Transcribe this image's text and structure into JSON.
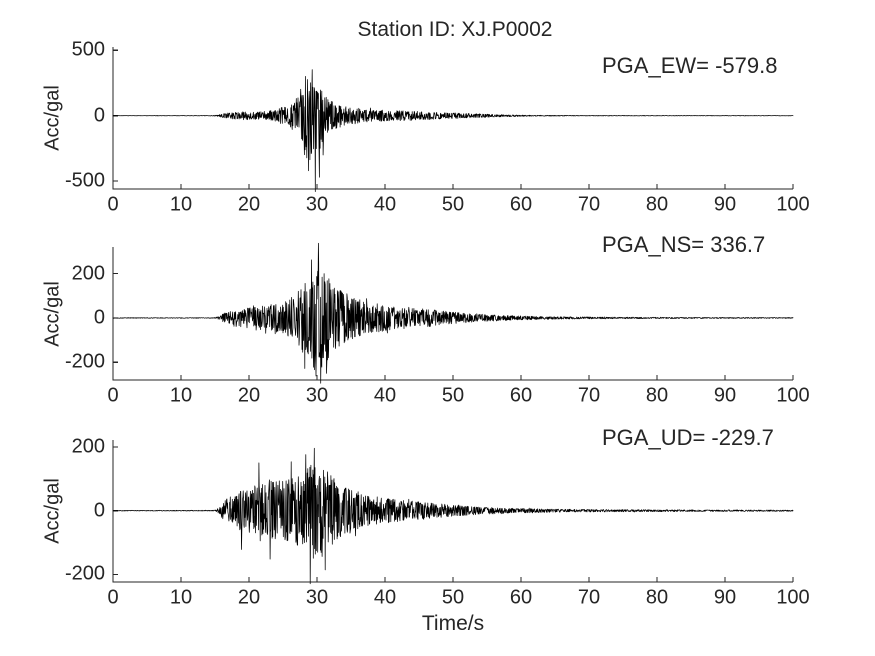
{
  "title": "Station ID: XJ.P0002",
  "background": "#ffffff",
  "axis_color": "#262626",
  "trace_color": "#000000",
  "chart_data": [
    {
      "type": "line",
      "series": "EW acceleration waveform",
      "annotation": "PGA_EW= -579.8",
      "pga_gal": -579.8,
      "ylabel": "Acc/gal",
      "xlabel": "",
      "xlim": [
        0,
        100
      ],
      "xticks": [
        0,
        10,
        20,
        30,
        40,
        50,
        60,
        70,
        80,
        90,
        100
      ],
      "yticks": [
        -500,
        0,
        500
      ],
      "ylim": [
        -560,
        525
      ],
      "grid": false,
      "legend": false,
      "envelope_t_amp": [
        [
          0,
          1.2
        ],
        [
          14,
          1.4
        ],
        [
          15.3,
          4
        ],
        [
          16,
          14
        ],
        [
          17,
          22
        ],
        [
          18,
          26
        ],
        [
          19,
          30
        ],
        [
          20,
          32
        ],
        [
          21,
          30
        ],
        [
          22,
          34
        ],
        [
          23,
          38
        ],
        [
          24,
          46
        ],
        [
          25,
          70
        ],
        [
          25.7,
          58
        ],
        [
          26.3,
          105
        ],
        [
          27,
          140
        ],
        [
          27.5,
          195
        ],
        [
          28,
          290
        ],
        [
          28.5,
          335
        ],
        [
          29,
          345
        ],
        [
          29.6,
          330
        ],
        [
          30,
          335
        ],
        [
          30.5,
          245
        ],
        [
          31,
          180
        ],
        [
          31.6,
          150
        ],
        [
          32,
          112
        ],
        [
          33,
          95
        ],
        [
          34,
          76
        ],
        [
          35,
          65
        ],
        [
          36,
          60
        ],
        [
          37,
          55
        ],
        [
          38,
          48
        ],
        [
          39,
          45
        ],
        [
          40,
          42
        ],
        [
          42,
          38
        ],
        [
          44,
          36
        ],
        [
          46,
          30
        ],
        [
          48,
          28
        ],
        [
          50,
          22
        ],
        [
          52,
          18
        ],
        [
          54,
          14
        ],
        [
          56,
          10
        ],
        [
          58,
          7
        ],
        [
          60,
          5
        ],
        [
          63,
          3.5
        ],
        [
          66,
          2.5
        ],
        [
          70,
          2
        ],
        [
          80,
          1.6
        ],
        [
          90,
          1.4
        ],
        [
          100,
          1.3
        ]
      ],
      "peak_spikes": [
        {
          "t": 29.75,
          "v": -579.8
        },
        {
          "t": 29.3,
          "v": 352
        },
        {
          "t": 30.35,
          "v": -470
        },
        {
          "t": 28.75,
          "v": -420
        },
        {
          "t": 28.3,
          "v": 300
        },
        {
          "t": 30.9,
          "v": -300
        }
      ]
    },
    {
      "type": "line",
      "series": "NS acceleration waveform",
      "annotation": "PGA_NS= 336.7",
      "pga_gal": 336.7,
      "ylabel": "Acc/gal",
      "xlabel": "",
      "xlim": [
        0,
        100
      ],
      "xticks": [
        0,
        10,
        20,
        30,
        40,
        50,
        60,
        70,
        80,
        90,
        100
      ],
      "yticks": [
        -200,
        0,
        200
      ],
      "ylim": [
        -280,
        320
      ],
      "grid": false,
      "legend": false,
      "envelope_t_amp": [
        [
          0,
          1.2
        ],
        [
          14.8,
          1.4
        ],
        [
          15.6,
          7
        ],
        [
          16,
          16
        ],
        [
          17,
          30
        ],
        [
          18,
          40
        ],
        [
          19,
          42
        ],
        [
          20,
          48
        ],
        [
          21,
          55
        ],
        [
          22,
          64
        ],
        [
          23,
          58
        ],
        [
          24,
          68
        ],
        [
          25,
          74
        ],
        [
          26,
          85
        ],
        [
          26.5,
          115
        ],
        [
          27,
          108
        ],
        [
          27.5,
          138
        ],
        [
          28,
          168
        ],
        [
          28.5,
          152
        ],
        [
          29,
          198
        ],
        [
          29.5,
          228
        ],
        [
          30,
          258
        ],
        [
          30.5,
          238
        ],
        [
          31,
          200
        ],
        [
          31.5,
          208
        ],
        [
          32,
          160
        ],
        [
          33,
          140
        ],
        [
          34,
          118
        ],
        [
          35,
          100
        ],
        [
          36,
          88
        ],
        [
          37,
          75
        ],
        [
          38,
          70
        ],
        [
          39,
          64
        ],
        [
          40,
          58
        ],
        [
          41,
          54
        ],
        [
          42,
          50
        ],
        [
          43,
          52
        ],
        [
          44,
          45
        ],
        [
          45,
          40
        ],
        [
          46,
          42
        ],
        [
          47,
          38
        ],
        [
          48,
          34
        ],
        [
          49,
          30
        ],
        [
          50,
          28
        ],
        [
          52,
          22
        ],
        [
          54,
          18
        ],
        [
          56,
          14
        ],
        [
          58,
          11
        ],
        [
          60,
          9
        ],
        [
          63,
          7
        ],
        [
          66,
          5.5
        ],
        [
          70,
          4.5
        ],
        [
          75,
          3.5
        ],
        [
          80,
          3
        ],
        [
          90,
          2.2
        ],
        [
          100,
          2
        ]
      ],
      "peak_spikes": [
        {
          "t": 30.2,
          "v": 336.7
        },
        {
          "t": 30.55,
          "v": -295
        },
        {
          "t": 29.85,
          "v": -262
        },
        {
          "t": 28.2,
          "v": -228
        },
        {
          "t": 29.2,
          "v": 262
        },
        {
          "t": 31.4,
          "v": -250
        }
      ]
    },
    {
      "type": "line",
      "series": "UD acceleration waveform",
      "annotation": "PGA_UD= -229.7",
      "pga_gal": -229.7,
      "ylabel": "Acc/gal",
      "xlabel": "Time/s",
      "xlim": [
        0,
        100
      ],
      "xticks": [
        0,
        10,
        20,
        30,
        40,
        50,
        60,
        70,
        80,
        90,
        100
      ],
      "yticks": [
        -200,
        0,
        200
      ],
      "ylim": [
        -224,
        222
      ],
      "grid": false,
      "legend": false,
      "envelope_t_amp": [
        [
          0,
          1
        ],
        [
          14.8,
          1.2
        ],
        [
          15.6,
          9
        ],
        [
          16,
          22
        ],
        [
          16.5,
          34
        ],
        [
          17,
          44
        ],
        [
          17.5,
          54
        ],
        [
          18,
          50
        ],
        [
          18.5,
          58
        ],
        [
          19,
          64
        ],
        [
          19.5,
          60
        ],
        [
          20,
          68
        ],
        [
          20.5,
          74
        ],
        [
          21,
          80
        ],
        [
          21.5,
          88
        ],
        [
          22,
          84
        ],
        [
          22.5,
          92
        ],
        [
          23,
          98
        ],
        [
          23.5,
          90
        ],
        [
          24,
          94
        ],
        [
          24.5,
          100
        ],
        [
          25,
          104
        ],
        [
          25.5,
          95
        ],
        [
          26,
          100
        ],
        [
          27,
          108
        ],
        [
          27.5,
          118
        ],
        [
          28,
          128
        ],
        [
          28.5,
          138
        ],
        [
          29,
          148
        ],
        [
          29.5,
          158
        ],
        [
          30,
          150
        ],
        [
          30.5,
          145
        ],
        [
          31,
          148
        ],
        [
          31.5,
          130
        ],
        [
          32,
          112
        ],
        [
          33,
          95
        ],
        [
          34,
          80
        ],
        [
          35,
          70
        ],
        [
          36,
          60
        ],
        [
          37,
          50
        ],
        [
          38,
          46
        ],
        [
          39,
          42
        ],
        [
          40,
          40
        ],
        [
          42,
          34
        ],
        [
          44,
          30
        ],
        [
          46,
          26
        ],
        [
          48,
          22
        ],
        [
          50,
          18
        ],
        [
          52,
          15
        ],
        [
          54,
          12
        ],
        [
          56,
          10
        ],
        [
          58,
          8
        ],
        [
          60,
          7
        ],
        [
          65,
          5
        ],
        [
          70,
          4
        ],
        [
          80,
          3
        ],
        [
          90,
          2.4
        ],
        [
          100,
          2
        ]
      ],
      "peak_spikes": [
        {
          "t": 29.0,
          "v": -229.7
        },
        {
          "t": 29.6,
          "v": 196
        },
        {
          "t": 31.2,
          "v": -186
        },
        {
          "t": 28.35,
          "v": 176
        },
        {
          "t": 21.45,
          "v": 150
        },
        {
          "t": 23.1,
          "v": -152
        },
        {
          "t": 26.2,
          "v": 154
        },
        {
          "t": 18.9,
          "v": -122
        }
      ]
    }
  ]
}
